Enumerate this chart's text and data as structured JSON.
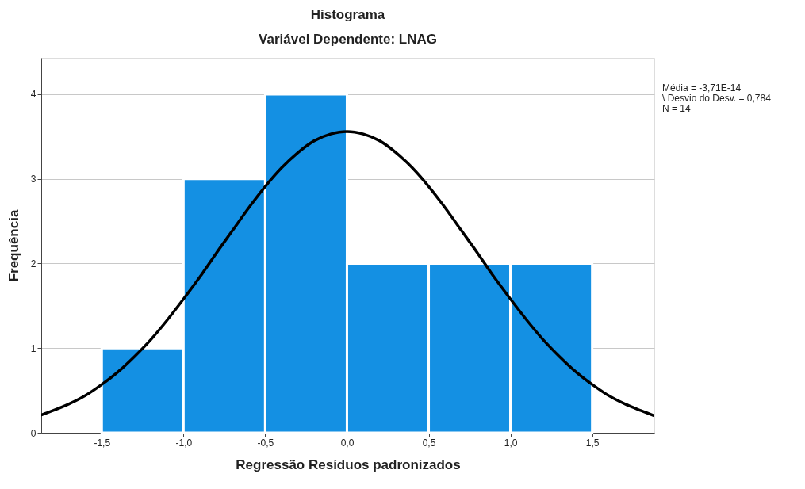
{
  "chart_data": {
    "type": "histogram",
    "title": "Histograma",
    "subtitle": "Variável Dependente: LNAG",
    "xlabel": "Regressão Resíduos padronizados",
    "ylabel": "Frequência",
    "bins": [
      -1.5,
      -1.0,
      -0.5,
      0.0,
      0.5,
      1.0,
      1.5
    ],
    "series": [
      {
        "color": "#1490e3",
        "values": [
          1,
          3,
          4,
          2,
          2,
          2
        ]
      },
      {
        "type": "line",
        "color": "#000000",
        "x": [
          -1.87,
          -1.8,
          -1.7,
          -1.6,
          -1.5,
          -1.4,
          -1.3,
          -1.2,
          -1.1,
          -1.0,
          -0.9,
          -0.8,
          -0.7,
          -0.6,
          -0.5,
          -0.4,
          -0.3,
          -0.2,
          -0.1,
          0.0,
          0.1,
          0.2,
          0.3,
          0.4,
          0.5,
          0.6,
          0.7,
          0.8,
          0.9,
          1.0,
          1.1,
          1.2,
          1.3,
          1.4,
          1.5,
          1.6,
          1.7,
          1.8,
          1.88
        ],
        "values": [
          0.21,
          0.26,
          0.34,
          0.44,
          0.57,
          0.72,
          0.9,
          1.1,
          1.33,
          1.58,
          1.84,
          2.12,
          2.39,
          2.66,
          2.91,
          3.13,
          3.31,
          3.45,
          3.53,
          3.56,
          3.53,
          3.45,
          3.31,
          3.13,
          2.91,
          2.66,
          2.39,
          2.12,
          1.84,
          1.58,
          1.33,
          1.1,
          0.9,
          0.72,
          0.57,
          0.44,
          0.34,
          0.26,
          0.2
        ]
      }
    ],
    "xlim": [
      -1.87,
      1.88
    ],
    "ylim": [
      0,
      4.43
    ],
    "xticks": [
      {
        "value": -1.5,
        "label": "-1,5"
      },
      {
        "value": -1.0,
        "label": "-1,0"
      },
      {
        "value": -0.5,
        "label": "-0,5"
      },
      {
        "value": 0.0,
        "label": "0,0"
      },
      {
        "value": 0.5,
        "label": "0,5"
      },
      {
        "value": 1.0,
        "label": "1,0"
      },
      {
        "value": 1.5,
        "label": "1,5"
      }
    ],
    "yticks": [
      0,
      1,
      2,
      3,
      4
    ],
    "grid": "y",
    "line_style": "solid",
    "marker": "none",
    "annotations": [
      "Média = -3,71E-14",
      "\\ Desvio do Desv. = 0,784",
      "N = 14"
    ]
  }
}
